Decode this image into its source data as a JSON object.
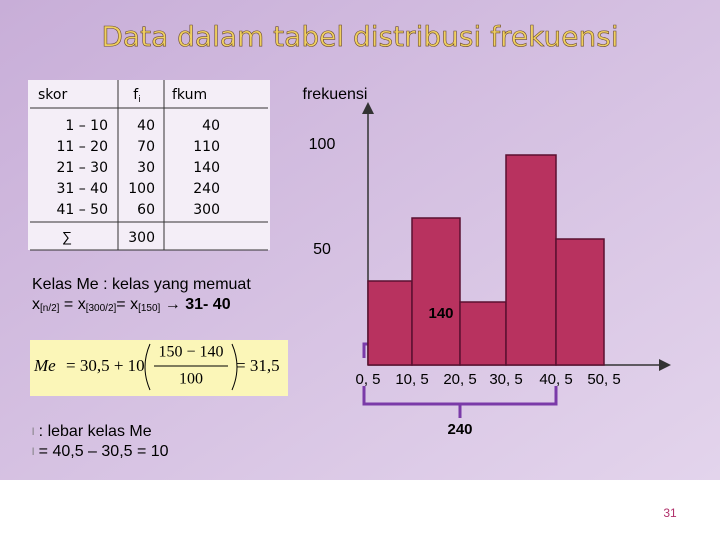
{
  "title": "Data dalam tabel distribusi frekuensi",
  "table": {
    "headers": [
      "skor",
      "f",
      "fkum"
    ],
    "header_sub": "i",
    "rows": [
      [
        "1 – 10",
        "40",
        "40"
      ],
      [
        "11 – 20",
        "70",
        "110"
      ],
      [
        "21 – 30",
        "30",
        "140"
      ],
      [
        "31 – 40",
        "100",
        "240"
      ],
      [
        "41 – 50",
        "60",
        "300"
      ]
    ],
    "total": [
      "∑",
      "300"
    ]
  },
  "median_text": {
    "line1": "Kelas Me : kelas yang memuat",
    "x1": "x",
    "s1": "[n/2]",
    "eq1": " = x",
    "s2": "[300/2]",
    "eq2": "= x",
    "s3": "[150]",
    "arrow": " → ",
    "cls": "31- 40"
  },
  "formula": {
    "lhs": "Me",
    "part": " = 30,5 + 10",
    "num": "150 − 140",
    "den": "100",
    "result": " = 31,5"
  },
  "notes": [
    {
      "marker": "l",
      "text": " : lebar kelas Me"
    },
    {
      "marker": "l",
      "text": " = 40,5 – 30,5 = 10"
    }
  ],
  "histogram": {
    "y_label": "frekuensi",
    "yticks": [
      100,
      50
    ],
    "bins": [
      "0, 5",
      "10, 5",
      "20, 5",
      "30, 5",
      "40, 5",
      "50, 5"
    ],
    "values": [
      40,
      70,
      30,
      100,
      60
    ],
    "color": "#b8325f"
  },
  "annotations": [
    "140",
    "240"
  ],
  "page_number": "31"
}
